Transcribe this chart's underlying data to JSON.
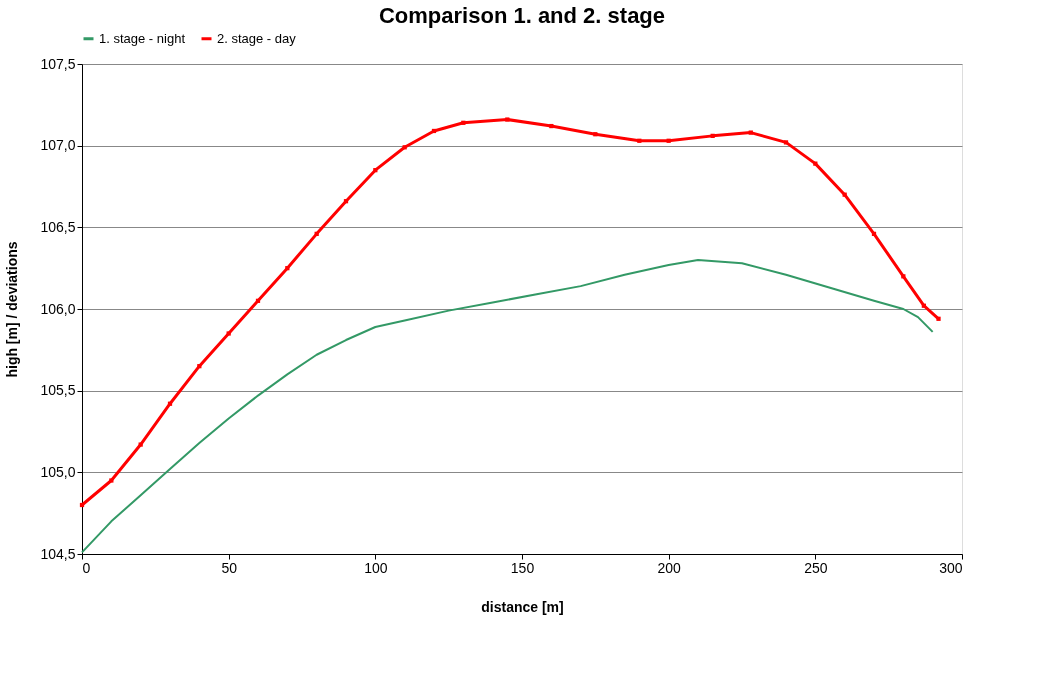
{
  "chart_data": {
    "type": "line",
    "title": "Comparison 1. and 2. stage",
    "xlabel": "distance [m]",
    "ylabel": "high [m] / deviations",
    "xlim": [
      0,
      300
    ],
    "xticks": [
      0,
      50,
      100,
      150,
      200,
      250,
      300
    ],
    "ylim": [
      104.5,
      107.5
    ],
    "yticks": [
      {
        "value": 104.5,
        "label": "104,5"
      },
      {
        "value": 105,
        "label": "105,0"
      },
      {
        "value": 105.5,
        "label": "105,5"
      },
      {
        "value": 106,
        "label": "106,0"
      },
      {
        "value": 106.5,
        "label": "106,5"
      },
      {
        "value": 107,
        "label": "107,0"
      },
      {
        "value": 107.5,
        "label": "107,5"
      }
    ],
    "grid": "y",
    "legend": "top",
    "line_style": "solid",
    "series": [
      {
        "name": "1. stage - night",
        "color": "#339966",
        "marker": "none",
        "x": [
          0,
          10,
          20,
          30,
          40,
          50,
          60,
          70,
          80,
          90,
          100,
          110,
          125,
          140,
          155,
          170,
          185,
          200,
          210,
          225,
          240,
          255,
          270,
          280,
          285,
          290
        ],
        "values": [
          104.51,
          104.7,
          104.86,
          105.02,
          105.18,
          105.33,
          105.47,
          105.6,
          105.72,
          105.81,
          105.89,
          105.93,
          105.99,
          106.04,
          106.09,
          106.14,
          106.21,
          106.27,
          106.3,
          106.28,
          106.21,
          106.13,
          106.05,
          106.0,
          105.95,
          105.86
        ]
      },
      {
        "name": "2. stage - day",
        "color": "#ff0000",
        "marker": "square",
        "x": [
          0,
          10,
          20,
          30,
          40,
          50,
          60,
          70,
          80,
          90,
          100,
          110,
          120,
          130,
          145,
          160,
          175,
          190,
          200,
          215,
          228,
          240,
          250,
          260,
          270,
          280,
          287,
          292
        ],
        "values": [
          104.8,
          104.95,
          105.17,
          105.42,
          105.65,
          105.85,
          106.05,
          106.25,
          106.46,
          106.66,
          106.85,
          106.99,
          107.09,
          107.14,
          107.16,
          107.12,
          107.07,
          107.03,
          107.03,
          107.06,
          107.08,
          107.02,
          106.89,
          106.7,
          106.46,
          106.2,
          106.02,
          105.94
        ]
      }
    ]
  }
}
